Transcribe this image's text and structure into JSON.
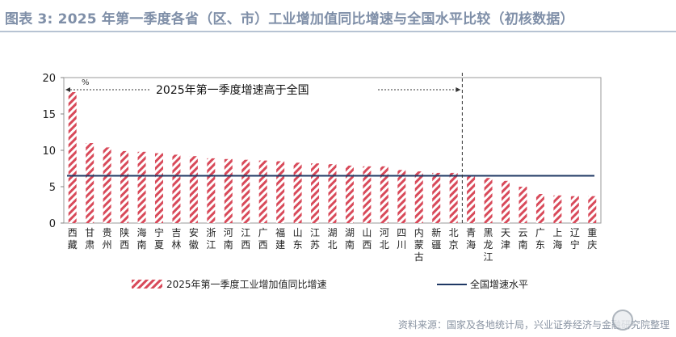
{
  "header": {
    "title": "图表 3:  2025 年第一季度各省（区、市）工业增加值同比增速与全国水平比较（初核数据）"
  },
  "footer": {
    "source": "资料来源：国家及各地统计局，兴业证券经济与金融研究院整理"
  },
  "chart_data": {
    "type": "bar",
    "categories": [
      "西藏",
      "甘肃",
      "贵州",
      "陕西",
      "海南",
      "宁夏",
      "吉林",
      "安徽",
      "浙江",
      "河南",
      "江西",
      "广西",
      "福建",
      "山东",
      "江苏",
      "湖北",
      "湖南",
      "山西",
      "河北",
      "四川",
      "内蒙古",
      "新疆",
      "北京",
      "青海",
      "黑龙江",
      "天津",
      "云南",
      "广东",
      "上海",
      "辽宁",
      "重庆"
    ],
    "series": [
      {
        "name": "2025年第一季度工业增加值同比增速",
        "type": "bar",
        "values": [
          18.0,
          11.0,
          10.4,
          9.9,
          9.8,
          9.6,
          9.4,
          9.2,
          8.9,
          8.8,
          8.7,
          8.6,
          8.5,
          8.3,
          8.2,
          8.1,
          7.9,
          7.8,
          7.8,
          7.3,
          7.1,
          6.9,
          6.9,
          6.4,
          6.2,
          5.8,
          5.0,
          4.0,
          3.8,
          3.7,
          3.7
        ]
      },
      {
        "name": "全国增速水平",
        "type": "line",
        "value": 6.5
      }
    ],
    "ylabel": "%",
    "ylim": [
      0,
      20
    ],
    "yticks": [
      0,
      5,
      10,
      15,
      20
    ],
    "annotation": "2025年第一季度增速高于全国",
    "divider_after_category": "北京",
    "legend_position": "bottom",
    "colors": {
      "bar_stripe": "#d84a5a",
      "national_line": "#1f3864",
      "axis": "#808080"
    }
  }
}
